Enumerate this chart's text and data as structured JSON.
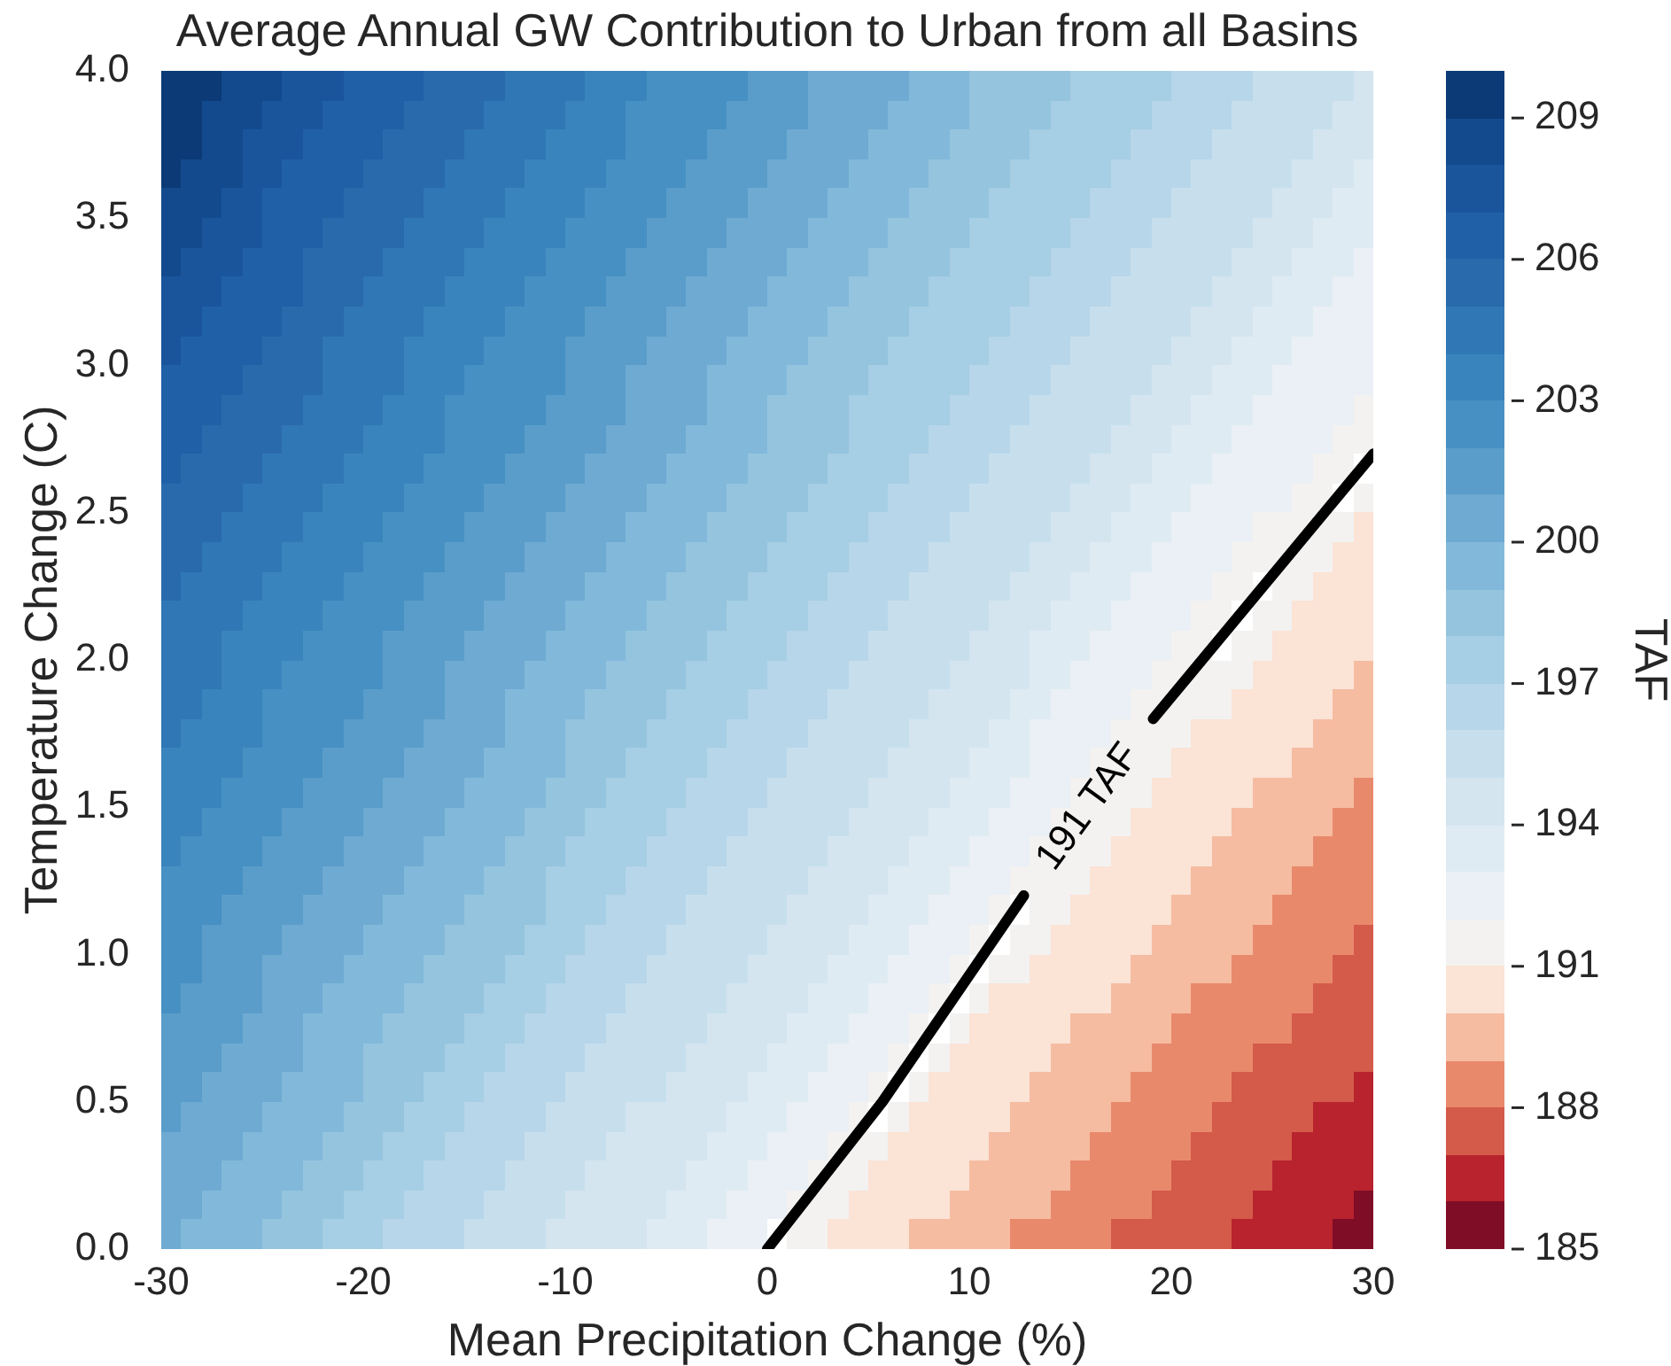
{
  "chart_data": {
    "type": "heatmap",
    "title": "Average Annual GW Contribution to Urban from all Basins",
    "xlabel": "Mean Precipitation Change (%)",
    "ylabel": "Temperature Change (C)",
    "clabel": "TAF",
    "x": [
      -29.5,
      -28.5,
      -27.5,
      -26.5,
      -25.5,
      -24.5,
      -23.5,
      -22.5,
      -21.5,
      -20.5,
      -19.5,
      -18.5,
      -17.5,
      -16.5,
      -15.5,
      -14.5,
      -13.5,
      -12.5,
      -11.5,
      -10.5,
      -9.5,
      -8.5,
      -7.5,
      -6.5,
      -5.5,
      -4.5,
      -3.5,
      -2.5,
      -1.5,
      -0.5,
      0.5,
      1.5,
      2.5,
      3.5,
      4.5,
      5.5,
      6.5,
      7.5,
      8.5,
      9.5,
      10.5,
      11.5,
      12.5,
      13.5,
      14.5,
      15.5,
      16.5,
      17.5,
      18.5,
      19.5,
      20.5,
      21.5,
      22.5,
      23.5,
      24.5,
      25.5,
      26.5,
      27.5,
      28.5,
      29.5
    ],
    "cells": [
      [
        209,
        209,
        209,
        208,
        208,
        208,
        207,
        207,
        207,
        206,
        206,
        206,
        206,
        205,
        205,
        205,
        205,
        204,
        204,
        204,
        204,
        203,
        203,
        203,
        202,
        202,
        202,
        202,
        202,
        201,
        201,
        201,
        200,
        200,
        200,
        200,
        200,
        199,
        199,
        199,
        198,
        198,
        198,
        198,
        198,
        197,
        197,
        197,
        197,
        197,
        196,
        196,
        196,
        196,
        195,
        195,
        195,
        195,
        195,
        194
      ],
      [
        209,
        209,
        208,
        208,
        208,
        207,
        207,
        207,
        206,
        206,
        206,
        206,
        205,
        205,
        205,
        205,
        204,
        204,
        204,
        204,
        203,
        203,
        203,
        202,
        202,
        202,
        202,
        202,
        201,
        201,
        201,
        201,
        200,
        200,
        200,
        200,
        199,
        199,
        199,
        199,
        198,
        198,
        198,
        198,
        197,
        197,
        197,
        197,
        197,
        196,
        196,
        196,
        196,
        195,
        195,
        195,
        195,
        195,
        194,
        194
      ],
      [
        209,
        209,
        208,
        208,
        207,
        207,
        207,
        206,
        206,
        206,
        206,
        205,
        205,
        205,
        205,
        204,
        204,
        204,
        204,
        203,
        203,
        203,
        203,
        202,
        202,
        202,
        202,
        201,
        201,
        201,
        201,
        200,
        200,
        200,
        200,
        199,
        199,
        199,
        199,
        198,
        198,
        198,
        198,
        197,
        197,
        197,
        197,
        197,
        196,
        196,
        196,
        196,
        195,
        195,
        195,
        195,
        195,
        194,
        194,
        194
      ],
      [
        209,
        208,
        208,
        208,
        207,
        207,
        206,
        206,
        206,
        206,
        205,
        205,
        205,
        205,
        204,
        204,
        204,
        204,
        203,
        203,
        203,
        203,
        202,
        202,
        202,
        202,
        201,
        201,
        201,
        201,
        200,
        200,
        200,
        200,
        199,
        199,
        199,
        199,
        198,
        198,
        198,
        198,
        197,
        197,
        197,
        197,
        197,
        196,
        196,
        196,
        196,
        195,
        195,
        195,
        195,
        195,
        194,
        194,
        194,
        193
      ],
      [
        208,
        208,
        208,
        207,
        207,
        206,
        206,
        206,
        206,
        205,
        205,
        205,
        205,
        204,
        204,
        204,
        204,
        203,
        203,
        203,
        203,
        202,
        202,
        202,
        202,
        201,
        201,
        201,
        201,
        200,
        200,
        200,
        200,
        199,
        199,
        199,
        199,
        198,
        198,
        198,
        198,
        197,
        197,
        197,
        197,
        197,
        196,
        196,
        196,
        196,
        195,
        195,
        195,
        195,
        195,
        194,
        194,
        194,
        193,
        193
      ],
      [
        208,
        208,
        207,
        207,
        207,
        206,
        206,
        206,
        205,
        205,
        205,
        205,
        204,
        204,
        204,
        204,
        203,
        203,
        203,
        203,
        202,
        202,
        202,
        202,
        201,
        201,
        201,
        201,
        200,
        200,
        200,
        200,
        199,
        199,
        199,
        199,
        198,
        198,
        198,
        198,
        197,
        197,
        197,
        197,
        197,
        196,
        196,
        196,
        196,
        195,
        195,
        195,
        195,
        195,
        194,
        194,
        194,
        193,
        193,
        193
      ],
      [
        208,
        207,
        207,
        207,
        206,
        206,
        206,
        205,
        205,
        205,
        205,
        204,
        204,
        204,
        204,
        203,
        203,
        203,
        203,
        202,
        202,
        202,
        202,
        201,
        201,
        201,
        201,
        200,
        200,
        200,
        200,
        199,
        199,
        199,
        199,
        198,
        198,
        198,
        198,
        197,
        197,
        197,
        197,
        197,
        196,
        196,
        196,
        196,
        195,
        195,
        195,
        195,
        195,
        194,
        194,
        194,
        193,
        193,
        193,
        192
      ],
      [
        207,
        207,
        207,
        206,
        206,
        206,
        206,
        205,
        205,
        205,
        204,
        204,
        204,
        204,
        203,
        203,
        203,
        203,
        202,
        202,
        202,
        202,
        201,
        201,
        201,
        201,
        200,
        200,
        200,
        200,
        199,
        199,
        199,
        199,
        198,
        198,
        198,
        198,
        197,
        197,
        197,
        197,
        197,
        196,
        196,
        196,
        196,
        195,
        195,
        195,
        195,
        195,
        194,
        194,
        194,
        193,
        193,
        193,
        192,
        192
      ],
      [
        207,
        207,
        206,
        206,
        206,
        206,
        205,
        205,
        205,
        204,
        204,
        204,
        204,
        203,
        203,
        203,
        203,
        202,
        202,
        202,
        202,
        201,
        201,
        201,
        201,
        200,
        200,
        200,
        200,
        199,
        199,
        199,
        199,
        198,
        198,
        198,
        198,
        197,
        197,
        197,
        197,
        197,
        196,
        196,
        196,
        196,
        195,
        195,
        195,
        195,
        195,
        194,
        194,
        194,
        193,
        193,
        193,
        192,
        192,
        192
      ],
      [
        207,
        206,
        206,
        206,
        206,
        205,
        205,
        205,
        204,
        204,
        204,
        204,
        203,
        203,
        203,
        203,
        202,
        202,
        202,
        202,
        201,
        201,
        201,
        201,
        200,
        200,
        200,
        200,
        199,
        199,
        199,
        199,
        198,
        198,
        198,
        198,
        197,
        197,
        197,
        197,
        197,
        196,
        196,
        196,
        196,
        195,
        195,
        195,
        195,
        195,
        194,
        194,
        194,
        193,
        193,
        193,
        192,
        192,
        192,
        192
      ],
      [
        206,
        206,
        206,
        206,
        205,
        205,
        205,
        205,
        204,
        204,
        204,
        204,
        203,
        203,
        203,
        202,
        202,
        202,
        202,
        202,
        201,
        201,
        201,
        200,
        200,
        200,
        200,
        199,
        199,
        199,
        199,
        198,
        198,
        198,
        198,
        197,
        197,
        197,
        197,
        197,
        196,
        196,
        196,
        196,
        195,
        195,
        195,
        195,
        195,
        194,
        194,
        194,
        193,
        193,
        193,
        192,
        192,
        192,
        192,
        192
      ],
      [
        206,
        206,
        206,
        205,
        205,
        205,
        205,
        204,
        204,
        204,
        204,
        203,
        203,
        203,
        202,
        202,
        202,
        202,
        202,
        201,
        201,
        201,
        201,
        200,
        200,
        200,
        200,
        199,
        199,
        199,
        198,
        198,
        198,
        198,
        197,
        197,
        197,
        197,
        197,
        196,
        196,
        196,
        196,
        195,
        195,
        195,
        195,
        195,
        194,
        194,
        194,
        193,
        193,
        193,
        192,
        192,
        192,
        192,
        192,
        191
      ],
      [
        206,
        206,
        205,
        205,
        205,
        205,
        204,
        204,
        204,
        204,
        203,
        203,
        203,
        203,
        202,
        202,
        202,
        202,
        201,
        201,
        201,
        201,
        200,
        200,
        200,
        200,
        199,
        199,
        199,
        199,
        198,
        198,
        198,
        198,
        197,
        197,
        197,
        197,
        196,
        196,
        196,
        196,
        195,
        195,
        195,
        195,
        195,
        194,
        194,
        194,
        193,
        193,
        193,
        192,
        192,
        192,
        192,
        192,
        191,
        191
      ],
      [
        206,
        205,
        205,
        205,
        205,
        204,
        204,
        204,
        204,
        203,
        203,
        203,
        203,
        202,
        202,
        202,
        202,
        201,
        201,
        201,
        201,
        200,
        200,
        200,
        200,
        199,
        199,
        199,
        199,
        198,
        198,
        198,
        198,
        197,
        197,
        197,
        197,
        196,
        196,
        196,
        196,
        195,
        195,
        195,
        195,
        195,
        194,
        194,
        194,
        193,
        193,
        193,
        192,
        192,
        192,
        192,
        192,
        191,
        191,
        null
      ],
      [
        205,
        205,
        205,
        205,
        204,
        204,
        204,
        204,
        203,
        203,
        203,
        203,
        202,
        202,
        202,
        202,
        201,
        201,
        201,
        201,
        200,
        200,
        200,
        200,
        199,
        199,
        199,
        199,
        198,
        198,
        198,
        198,
        197,
        197,
        197,
        197,
        196,
        196,
        196,
        196,
        195,
        195,
        195,
        195,
        195,
        194,
        194,
        194,
        193,
        193,
        193,
        192,
        192,
        192,
        192,
        192,
        191,
        191,
        null,
        191
      ],
      [
        205,
        205,
        205,
        204,
        204,
        204,
        204,
        203,
        203,
        203,
        203,
        202,
        202,
        202,
        202,
        201,
        201,
        201,
        201,
        200,
        200,
        200,
        200,
        199,
        199,
        199,
        199,
        198,
        198,
        198,
        198,
        197,
        197,
        197,
        197,
        196,
        196,
        196,
        196,
        195,
        195,
        195,
        195,
        195,
        194,
        194,
        194,
        193,
        193,
        193,
        192,
        192,
        192,
        192,
        191,
        191,
        191,
        191,
        191,
        190
      ],
      [
        205,
        205,
        204,
        204,
        204,
        204,
        203,
        203,
        203,
        203,
        202,
        202,
        202,
        202,
        201,
        201,
        201,
        201,
        200,
        200,
        200,
        200,
        199,
        199,
        199,
        199,
        198,
        198,
        198,
        198,
        197,
        197,
        197,
        197,
        196,
        196,
        196,
        196,
        195,
        195,
        195,
        195,
        195,
        194,
        194,
        194,
        193,
        193,
        193,
        192,
        192,
        192,
        192,
        191,
        191,
        191,
        191,
        191,
        190,
        190
      ],
      [
        205,
        204,
        204,
        204,
        204,
        203,
        203,
        203,
        203,
        202,
        202,
        202,
        202,
        201,
        201,
        201,
        201,
        200,
        200,
        200,
        200,
        199,
        199,
        199,
        199,
        198,
        198,
        198,
        198,
        197,
        197,
        197,
        197,
        196,
        196,
        196,
        196,
        195,
        195,
        195,
        195,
        195,
        194,
        194,
        194,
        193,
        193,
        193,
        192,
        192,
        192,
        192,
        191,
        191,
        null,
        191,
        191,
        190,
        190,
        190
      ],
      [
        204,
        204,
        204,
        204,
        203,
        203,
        203,
        203,
        202,
        202,
        202,
        202,
        201,
        201,
        201,
        201,
        200,
        200,
        200,
        200,
        199,
        199,
        199,
        199,
        198,
        198,
        198,
        198,
        197,
        197,
        197,
        197,
        196,
        196,
        196,
        196,
        195,
        195,
        195,
        195,
        195,
        194,
        194,
        194,
        193,
        193,
        193,
        192,
        192,
        192,
        192,
        191,
        191,
        null,
        191,
        191,
        190,
        190,
        190,
        190
      ],
      [
        204,
        204,
        204,
        203,
        203,
        203,
        203,
        202,
        202,
        202,
        202,
        201,
        201,
        201,
        201,
        200,
        200,
        200,
        200,
        199,
        199,
        199,
        199,
        198,
        198,
        198,
        198,
        197,
        197,
        197,
        197,
        196,
        196,
        196,
        196,
        195,
        195,
        195,
        195,
        195,
        194,
        194,
        194,
        193,
        193,
        193,
        192,
        192,
        192,
        192,
        191,
        191,
        null,
        191,
        191,
        190,
        190,
        190,
        190,
        190
      ],
      [
        204,
        204,
        204,
        203,
        203,
        203,
        202,
        202,
        202,
        202,
        202,
        201,
        201,
        201,
        200,
        200,
        200,
        200,
        199,
        199,
        199,
        199,
        198,
        198,
        198,
        198,
        197,
        197,
        197,
        197,
        196,
        196,
        196,
        196,
        195,
        195,
        195,
        195,
        195,
        194,
        194,
        194,
        194,
        193,
        193,
        192,
        192,
        192,
        192,
        191,
        191,
        191,
        191,
        191,
        190,
        190,
        190,
        190,
        190,
        189
      ],
      [
        204,
        204,
        203,
        203,
        203,
        202,
        202,
        202,
        202,
        202,
        201,
        201,
        201,
        201,
        200,
        200,
        200,
        199,
        199,
        199,
        199,
        198,
        198,
        198,
        198,
        197,
        197,
        197,
        197,
        196,
        196,
        196,
        196,
        195,
        195,
        195,
        195,
        195,
        194,
        194,
        194,
        194,
        193,
        193,
        192,
        192,
        192,
        192,
        191,
        191,
        191,
        191,
        191,
        190,
        190,
        190,
        190,
        190,
        189,
        189
      ],
      [
        204,
        203,
        203,
        203,
        203,
        202,
        202,
        202,
        202,
        201,
        201,
        201,
        201,
        200,
        200,
        200,
        200,
        199,
        199,
        199,
        198,
        198,
        198,
        198,
        197,
        197,
        197,
        197,
        196,
        196,
        196,
        196,
        195,
        195,
        195,
        195,
        195,
        194,
        194,
        194,
        194,
        193,
        193,
        192,
        192,
        192,
        192,
        191,
        191,
        191,
        191,
        190,
        190,
        190,
        190,
        190,
        190,
        189,
        189,
        189
      ],
      [
        203,
        203,
        203,
        203,
        202,
        202,
        202,
        202,
        201,
        201,
        201,
        201,
        200,
        200,
        200,
        200,
        199,
        199,
        199,
        199,
        198,
        198,
        198,
        197,
        197,
        197,
        197,
        196,
        196,
        196,
        196,
        195,
        195,
        195,
        195,
        195,
        194,
        194,
        194,
        194,
        193,
        193,
        193,
        192,
        192,
        192,
        191,
        191,
        191,
        191,
        190,
        190,
        190,
        190,
        190,
        190,
        189,
        189,
        189,
        189
      ],
      [
        203,
        203,
        203,
        202,
        202,
        202,
        202,
        201,
        201,
        201,
        201,
        200,
        200,
        200,
        200,
        199,
        199,
        199,
        199,
        198,
        198,
        198,
        197,
        197,
        197,
        197,
        196,
        196,
        196,
        196,
        195,
        195,
        195,
        195,
        195,
        194,
        194,
        194,
        194,
        193,
        193,
        193,
        192,
        192,
        192,
        191,
        191,
        191,
        191,
        190,
        190,
        190,
        190,
        190,
        189,
        189,
        189,
        189,
        189,
        188
      ],
      [
        203,
        203,
        202,
        202,
        202,
        202,
        201,
        201,
        201,
        201,
        200,
        200,
        200,
        200,
        199,
        199,
        199,
        199,
        198,
        198,
        198,
        197,
        197,
        197,
        197,
        196,
        196,
        196,
        196,
        195,
        195,
        195,
        195,
        195,
        194,
        194,
        194,
        194,
        193,
        193,
        193,
        192,
        192,
        192,
        191,
        191,
        191,
        191,
        190,
        190,
        190,
        190,
        190,
        189,
        189,
        189,
        189,
        189,
        188,
        188
      ],
      [
        203,
        202,
        202,
        202,
        202,
        201,
        201,
        201,
        201,
        200,
        200,
        200,
        200,
        199,
        199,
        199,
        199,
        198,
        198,
        198,
        197,
        197,
        197,
        197,
        196,
        196,
        196,
        196,
        195,
        195,
        195,
        195,
        195,
        194,
        194,
        194,
        194,
        193,
        193,
        193,
        192,
        192,
        192,
        191,
        191,
        191,
        191,
        190,
        190,
        190,
        190,
        190,
        189,
        189,
        189,
        189,
        189,
        188,
        188,
        188
      ],
      [
        202,
        202,
        202,
        202,
        201,
        201,
        201,
        201,
        200,
        200,
        200,
        200,
        199,
        199,
        199,
        199,
        198,
        198,
        198,
        197,
        197,
        197,
        197,
        196,
        196,
        196,
        196,
        195,
        195,
        195,
        195,
        195,
        194,
        194,
        194,
        194,
        193,
        193,
        193,
        192,
        192,
        192,
        191,
        191,
        191,
        191,
        190,
        190,
        190,
        190,
        190,
        189,
        189,
        189,
        189,
        189,
        188,
        188,
        188,
        188
      ],
      [
        202,
        202,
        202,
        201,
        201,
        201,
        201,
        200,
        200,
        200,
        200,
        199,
        199,
        199,
        199,
        198,
        198,
        198,
        198,
        197,
        197,
        197,
        196,
        196,
        196,
        196,
        195,
        195,
        195,
        195,
        195,
        194,
        194,
        194,
        194,
        193,
        193,
        193,
        192,
        192,
        192,
        191,
        null,
        191,
        191,
        190,
        190,
        190,
        190,
        190,
        189,
        189,
        189,
        189,
        189,
        188,
        188,
        188,
        188,
        188
      ],
      [
        202,
        202,
        201,
        201,
        201,
        201,
        200,
        200,
        200,
        200,
        199,
        199,
        199,
        199,
        198,
        198,
        198,
        198,
        197,
        197,
        197,
        196,
        196,
        196,
        196,
        195,
        195,
        195,
        195,
        195,
        194,
        194,
        194,
        194,
        193,
        193,
        193,
        192,
        192,
        192,
        191,
        null,
        191,
        191,
        190,
        190,
        190,
        190,
        190,
        189,
        189,
        189,
        189,
        189,
        188,
        188,
        188,
        188,
        188,
        187
      ],
      [
        202,
        202,
        201,
        201,
        201,
        200,
        200,
        200,
        200,
        199,
        199,
        199,
        199,
        198,
        198,
        198,
        198,
        197,
        197,
        197,
        196,
        196,
        196,
        196,
        195,
        195,
        195,
        195,
        195,
        194,
        194,
        194,
        194,
        193,
        193,
        193,
        192,
        192,
        192,
        191,
        null,
        191,
        191,
        190,
        190,
        190,
        190,
        190,
        189,
        189,
        189,
        189,
        189,
        188,
        188,
        188,
        188,
        188,
        187,
        187
      ],
      [
        202,
        201,
        201,
        201,
        201,
        200,
        200,
        200,
        199,
        199,
        199,
        199,
        198,
        198,
        198,
        198,
        197,
        197,
        197,
        196,
        196,
        196,
        196,
        195,
        195,
        195,
        195,
        195,
        194,
        194,
        194,
        194,
        193,
        193,
        193,
        192,
        192,
        192,
        191,
        null,
        191,
        190,
        190,
        190,
        190,
        190,
        190,
        189,
        189,
        189,
        189,
        188,
        188,
        188,
        188,
        188,
        188,
        187,
        187,
        187
      ],
      [
        201,
        201,
        201,
        201,
        200,
        200,
        200,
        199,
        199,
        199,
        199,
        198,
        198,
        198,
        198,
        197,
        197,
        197,
        196,
        196,
        196,
        196,
        195,
        195,
        195,
        195,
        195,
        194,
        194,
        194,
        194,
        193,
        193,
        193,
        192,
        192,
        192,
        191,
        null,
        191,
        190,
        190,
        190,
        190,
        190,
        189,
        189,
        189,
        189,
        189,
        188,
        188,
        188,
        188,
        188,
        188,
        187,
        187,
        187,
        187
      ],
      [
        201,
        201,
        201,
        200,
        200,
        200,
        200,
        199,
        199,
        199,
        198,
        198,
        198,
        198,
        197,
        197,
        197,
        196,
        196,
        196,
        196,
        195,
        195,
        195,
        195,
        195,
        194,
        194,
        194,
        194,
        193,
        193,
        193,
        192,
        192,
        192,
        191,
        null,
        191,
        190,
        190,
        190,
        190,
        190,
        189,
        189,
        189,
        189,
        189,
        188,
        188,
        188,
        188,
        188,
        187,
        187,
        187,
        187,
        187,
        187
      ],
      [
        201,
        201,
        200,
        200,
        200,
        200,
        199,
        199,
        199,
        199,
        198,
        198,
        198,
        197,
        197,
        197,
        196,
        196,
        196,
        196,
        195,
        195,
        195,
        195,
        195,
        194,
        194,
        194,
        194,
        193,
        193,
        193,
        192,
        192,
        192,
        191,
        null,
        191,
        190,
        190,
        190,
        190,
        190,
        189,
        189,
        189,
        189,
        189,
        188,
        188,
        188,
        188,
        188,
        187,
        187,
        187,
        187,
        187,
        187,
        186
      ],
      [
        201,
        200,
        200,
        200,
        200,
        199,
        199,
        199,
        199,
        198,
        198,
        198,
        197,
        197,
        197,
        196,
        196,
        196,
        196,
        195,
        195,
        195,
        195,
        194,
        194,
        194,
        194,
        194,
        193,
        193,
        193,
        192,
        192,
        192,
        191,
        null,
        191,
        190,
        190,
        190,
        190,
        190,
        189,
        189,
        189,
        189,
        189,
        188,
        188,
        188,
        188,
        188,
        187,
        187,
        187,
        187,
        187,
        186,
        186,
        186
      ],
      [
        200,
        200,
        200,
        200,
        199,
        199,
        199,
        199,
        198,
        198,
        198,
        197,
        197,
        197,
        196,
        196,
        196,
        196,
        195,
        195,
        195,
        195,
        194,
        194,
        194,
        194,
        194,
        193,
        193,
        193,
        192,
        192,
        192,
        191,
        191,
        191,
        190,
        190,
        190,
        190,
        190,
        189,
        189,
        189,
        189,
        189,
        188,
        188,
        188,
        188,
        188,
        187,
        187,
        187,
        187,
        187,
        186,
        186,
        186,
        186
      ],
      [
        200,
        200,
        200,
        199,
        199,
        199,
        199,
        198,
        198,
        198,
        197,
        197,
        197,
        196,
        196,
        196,
        196,
        195,
        195,
        195,
        195,
        194,
        194,
        194,
        194,
        194,
        193,
        193,
        193,
        192,
        192,
        192,
        191,
        191,
        191,
        190,
        190,
        190,
        190,
        190,
        189,
        189,
        189,
        189,
        189,
        188,
        188,
        188,
        188,
        188,
        187,
        187,
        187,
        187,
        187,
        186,
        186,
        186,
        186,
        186
      ],
      [
        200,
        200,
        199,
        199,
        199,
        199,
        198,
        198,
        198,
        197,
        197,
        197,
        196,
        196,
        196,
        196,
        195,
        195,
        195,
        195,
        194,
        194,
        194,
        194,
        194,
        193,
        193,
        193,
        192,
        192,
        192,
        191,
        191,
        191,
        190,
        190,
        190,
        190,
        190,
        189,
        189,
        189,
        189,
        189,
        188,
        188,
        188,
        188,
        188,
        187,
        187,
        187,
        187,
        187,
        186,
        186,
        186,
        186,
        186,
        185
      ],
      [
        200,
        199,
        199,
        199,
        199,
        198,
        198,
        198,
        197,
        197,
        197,
        196,
        196,
        196,
        196,
        195,
        195,
        195,
        195,
        194,
        194,
        194,
        194,
        194,
        193,
        193,
        193,
        192,
        192,
        192,
        null,
        191,
        191,
        190,
        190,
        190,
        190,
        189,
        189,
        189,
        189,
        189,
        188,
        188,
        188,
        188,
        188,
        187,
        187,
        187,
        187,
        187,
        187,
        186,
        186,
        186,
        186,
        186,
        185,
        185
      ]
    ],
    "colors": [
      "#7f0d25",
      "#b8232e",
      "#d45a4a",
      "#e9896c",
      "#f5bca1",
      "#fbe3d6",
      "#f3f2f1",
      "#eaf0f5",
      "#dfebf3",
      "#d4e5f0",
      "#c7dfed",
      "#b7d6e9",
      "#a6cee4",
      "#95c4df",
      "#82b9da",
      "#6eaad2",
      "#5a9dca",
      "#4790c3",
      "#3a84bd",
      "#3077b5",
      "#296aac",
      "#2060a6",
      "#1a559c",
      "#134a8e",
      "#0b3a76"
    ],
    "clim": [
      185,
      210
    ],
    "cticks": [
      185,
      188,
      191,
      194,
      197,
      200,
      203,
      206,
      209
    ],
    "xlim": [
      -30,
      30
    ],
    "xticks": [
      -30,
      -20,
      -10,
      0,
      10,
      20,
      30
    ],
    "ylim": [
      0,
      4
    ],
    "yticks": [
      {
        "value": 0,
        "label": "0.0"
      },
      0.5,
      {
        "value": 1,
        "label": "1.0"
      },
      1.5,
      {
        "value": 2,
        "label": "2.0"
      },
      2.5,
      {
        "value": 3,
        "label": "3.0"
      },
      3.5,
      {
        "value": 4,
        "label": "4.0"
      }
    ],
    "series": [
      {
        "type": "line",
        "name": "191 TAF",
        "color": "#000000",
        "x": [
          0,
          5.7,
          12.7,
          15.9,
          19.1,
          30
        ],
        "values": [
          0,
          0.5,
          1.2,
          null,
          1.8,
          2.7
        ]
      }
    ]
  }
}
